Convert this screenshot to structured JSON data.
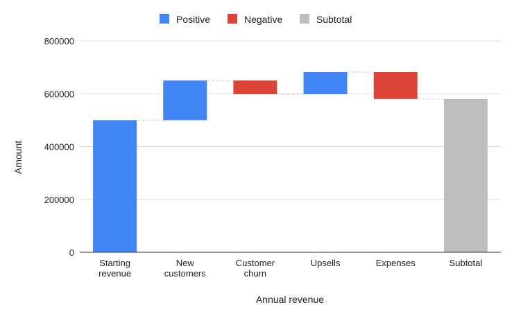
{
  "chart_data": {
    "type": "waterfall",
    "title": "",
    "xlabel": "Annual revenue",
    "ylabel": "Amount",
    "ylim": [
      0,
      800000
    ],
    "yticks": [
      "0",
      "200000",
      "400000",
      "600000",
      "800000"
    ],
    "grid": true,
    "legend_position": "top",
    "legend": [
      {
        "label": "Positive",
        "color": "#4285f4"
      },
      {
        "label": "Negative",
        "color": "#db4437"
      },
      {
        "label": "Subtotal",
        "color": "#bdbdbd"
      }
    ],
    "categories": [
      [
        "Starting",
        "revenue"
      ],
      [
        "New",
        "customers"
      ],
      [
        "Customer",
        "churn"
      ],
      [
        "Upsells"
      ],
      [
        "Expenses"
      ],
      [
        "Subtotal"
      ]
    ],
    "bars": [
      {
        "kind": "positive",
        "start": 0,
        "end": 500000
      },
      {
        "kind": "positive",
        "start": 500000,
        "end": 650000
      },
      {
        "kind": "negative",
        "start": 650000,
        "end": 598000
      },
      {
        "kind": "positive",
        "start": 598000,
        "end": 682000
      },
      {
        "kind": "negative",
        "start": 682000,
        "end": 580000
      },
      {
        "kind": "subtotal",
        "start": 0,
        "end": 580000
      }
    ]
  }
}
